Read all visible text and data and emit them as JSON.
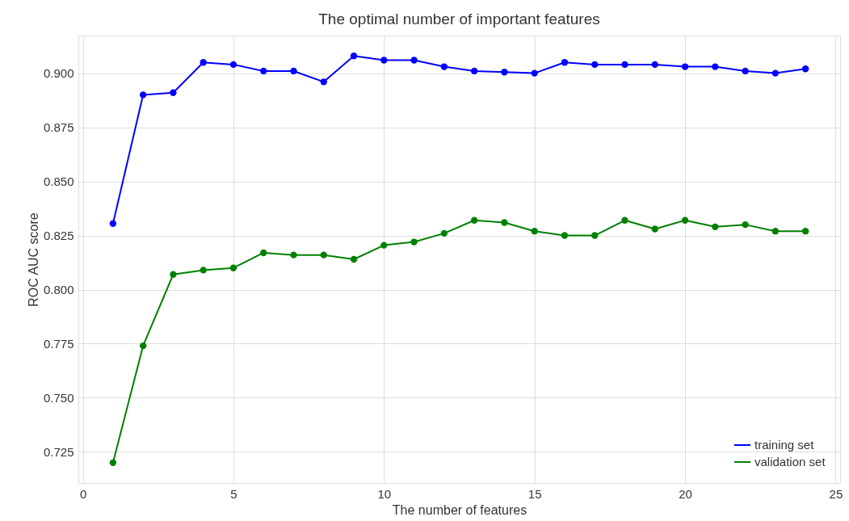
{
  "chart_data": {
    "type": "line",
    "title": "The optimal number of important features",
    "xlabel": "The number of features",
    "ylabel": "ROC AUC score",
    "x": [
      1,
      2,
      3,
      4,
      5,
      6,
      7,
      8,
      9,
      10,
      11,
      12,
      13,
      14,
      15,
      16,
      17,
      18,
      19,
      20,
      21,
      22,
      23,
      24
    ],
    "series": [
      {
        "name": "training set",
        "color": "#0000ff",
        "values": [
          0.8305,
          0.89,
          0.891,
          0.905,
          0.904,
          0.901,
          0.901,
          0.896,
          0.908,
          0.906,
          0.906,
          0.903,
          0.901,
          0.9005,
          0.9,
          0.905,
          0.904,
          0.904,
          0.904,
          0.903,
          0.903,
          0.901,
          0.9,
          0.902
        ]
      },
      {
        "name": "validation set",
        "color": "#008000",
        "values": [
          0.72,
          0.774,
          0.807,
          0.809,
          0.81,
          0.817,
          0.816,
          0.816,
          0.814,
          0.8205,
          0.822,
          0.826,
          0.832,
          0.831,
          0.827,
          0.825,
          0.825,
          0.832,
          0.828,
          0.832,
          0.829,
          0.83,
          0.827,
          0.827
        ]
      }
    ],
    "xlim": [
      -0.15,
      25.15
    ],
    "xticks": [
      0,
      5,
      10,
      15,
      20,
      25
    ],
    "ylim": [
      0.7106,
      0.9174
    ],
    "yticks": [
      0.725,
      {
        "value": 0.75,
        "label": "0.750"
      },
      0.775,
      {
        "value": 0.8,
        "label": "0.800"
      },
      0.825,
      {
        "value": 0.85,
        "label": "0.850"
      },
      0.875,
      {
        "value": 0.9,
        "label": "0.900"
      }
    ],
    "grid": true,
    "legend": "bottom right",
    "marker": "circle",
    "line_style": "solid"
  }
}
